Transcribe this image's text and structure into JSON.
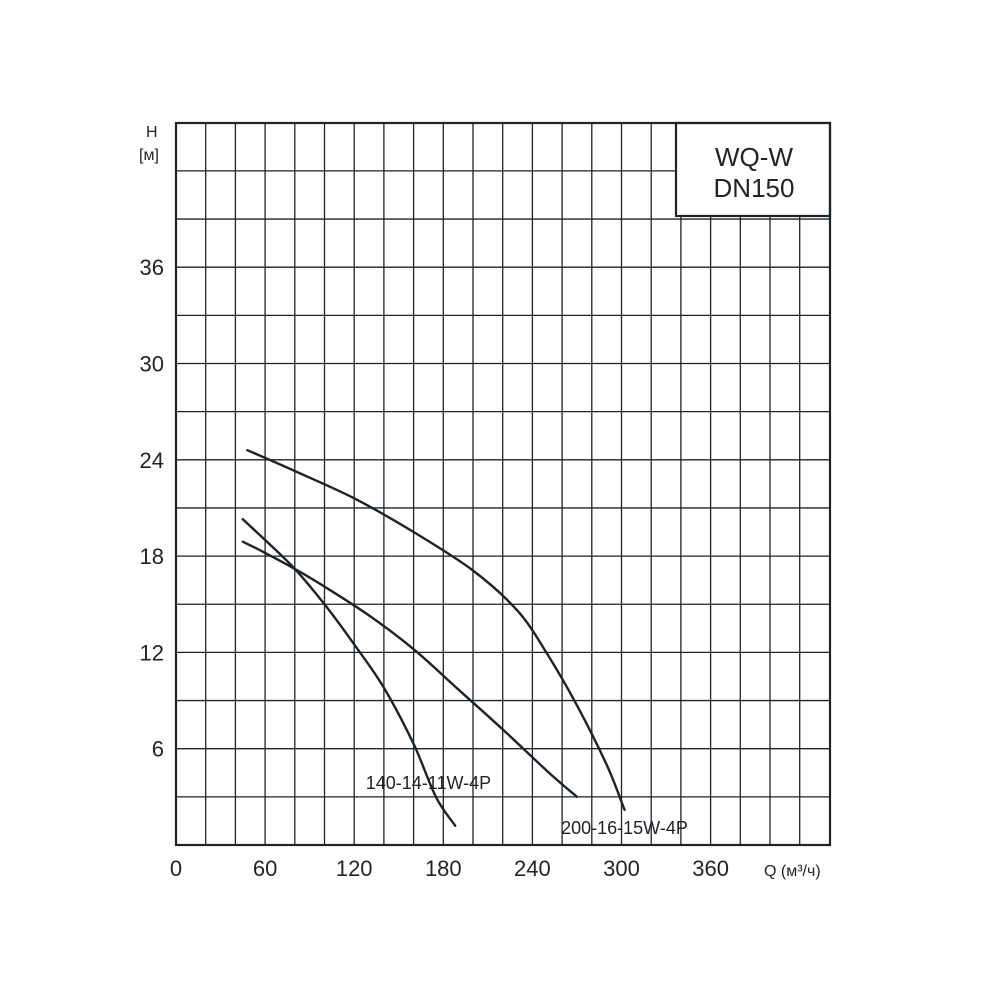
{
  "chart_data": {
    "type": "line",
    "title_lines": [
      "WQ-W",
      "DN150"
    ],
    "ylabel_lines": [
      "H",
      "[м]"
    ],
    "xlabel": "Q (м³/ч)",
    "xlim": [
      0,
      440
    ],
    "ylim": [
      0,
      45
    ],
    "x_tick_labels": [
      "0",
      "60",
      "120",
      "180",
      "240",
      "300",
      "360"
    ],
    "x_tick_values": [
      0,
      60,
      120,
      180,
      240,
      300,
      360
    ],
    "y_tick_labels": [
      "6",
      "12",
      "18",
      "24",
      "30",
      "36"
    ],
    "y_tick_values": [
      6,
      12,
      18,
      24,
      30,
      36
    ],
    "grid": true,
    "series": [
      {
        "name": "140-14-11W-4P",
        "points": [
          [
            45,
            20.3
          ],
          [
            60,
            19.0
          ],
          [
            80,
            17.2
          ],
          [
            100,
            15.0
          ],
          [
            120,
            12.5
          ],
          [
            140,
            9.8
          ],
          [
            160,
            6.3
          ],
          [
            175,
            3.0
          ],
          [
            188,
            1.2
          ]
        ]
      },
      {
        "name": "",
        "points": [
          [
            45,
            18.9
          ],
          [
            60,
            18.2
          ],
          [
            80,
            17.2
          ],
          [
            100,
            16.1
          ],
          [
            130,
            14.3
          ],
          [
            160,
            12.2
          ],
          [
            190,
            9.7
          ],
          [
            220,
            7.2
          ],
          [
            250,
            4.6
          ],
          [
            270,
            3.0
          ]
        ]
      },
      {
        "name": "200-16-15W-4P",
        "points": [
          [
            48,
            24.6
          ],
          [
            80,
            23.3
          ],
          [
            120,
            21.6
          ],
          [
            160,
            19.5
          ],
          [
            200,
            17.1
          ],
          [
            230,
            14.6
          ],
          [
            250,
            11.9
          ],
          [
            270,
            8.7
          ],
          [
            290,
            5.0
          ],
          [
            302,
            2.2
          ]
        ]
      }
    ]
  }
}
